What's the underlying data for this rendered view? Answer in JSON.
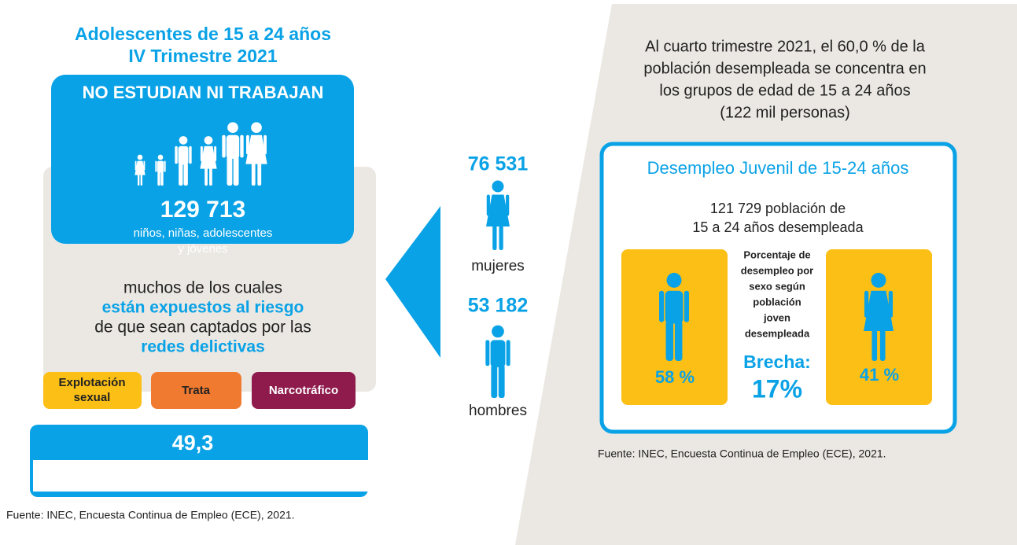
{
  "left": {
    "title_lines": [
      "Adolescentes de 15 a 24 años",
      "IV Trimestre 2021"
    ],
    "box_heading": "NO ESTUDIAN NI TRABAJAN",
    "count": "129 713",
    "count_caption": [
      "niños, niñas, adolescentes",
      "y jóvenes"
    ],
    "risk_text": [
      "muchos de los cuales",
      "están expuestos al riesgo",
      "de que sean captados por las",
      "redes delictivas"
    ],
    "tags": [
      [
        "Explotación",
        "sexual"
      ],
      [
        "Trata"
      ],
      [
        "Narcotráfico"
      ]
    ],
    "bottom_value": "49,3",
    "source": "Fuente: INEC, Encuesta Continua de Empleo (ECE), 2021."
  },
  "middle": {
    "women": {
      "value": "76 531",
      "label": "mujeres"
    },
    "men": {
      "value": "53 182",
      "label": "hombres"
    }
  },
  "right": {
    "intro_lines": [
      "Al cuarto trimestre 2021, el 60,0 % de la",
      "población desempleada se concentra en",
      "los grupos de edad de 15 a 24 años",
      "(122 mil personas)"
    ],
    "box_title": "Desempleo Juvenil de 15-24 años",
    "summary_lines": [
      "121 729 población de",
      "15 a 24 años desempleada"
    ],
    "men_pct": "58 %",
    "women_pct": "41 %",
    "note_lines": [
      "Porcentaje de",
      "desempleo por",
      "sexo según",
      "población",
      "joven",
      "desempleada"
    ],
    "gap_label": "Brecha:",
    "gap_value": "17%",
    "source": "Fuente: INEC, Encuesta Continua de Empleo (ECE), 2021."
  }
}
